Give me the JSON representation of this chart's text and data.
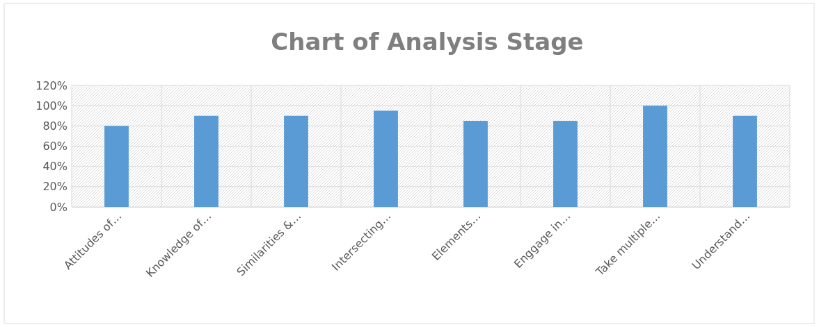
{
  "chart_data": {
    "type": "bar",
    "title": "Chart of Analysis Stage",
    "categories": [
      "Attitudes of…",
      "Knowledge of…",
      "Similarities &…",
      "Intersecting…",
      "Elements…",
      "Enggage in…",
      "Take multiple…",
      "Understand…"
    ],
    "values": [
      80,
      90,
      90,
      95,
      85,
      85,
      100,
      90
    ],
    "color": "#5b9bd5",
    "ylim": [
      0,
      120
    ],
    "yticks": [
      {
        "value": 0,
        "label": "0%"
      },
      {
        "value": 20,
        "label": "20%"
      },
      {
        "value": 40,
        "label": "40%"
      },
      {
        "value": 60,
        "label": "60%"
      },
      {
        "value": 80,
        "label": "80%"
      },
      {
        "value": 100,
        "label": "100%"
      },
      {
        "value": 120,
        "label": "120%"
      }
    ],
    "grid": true
  }
}
